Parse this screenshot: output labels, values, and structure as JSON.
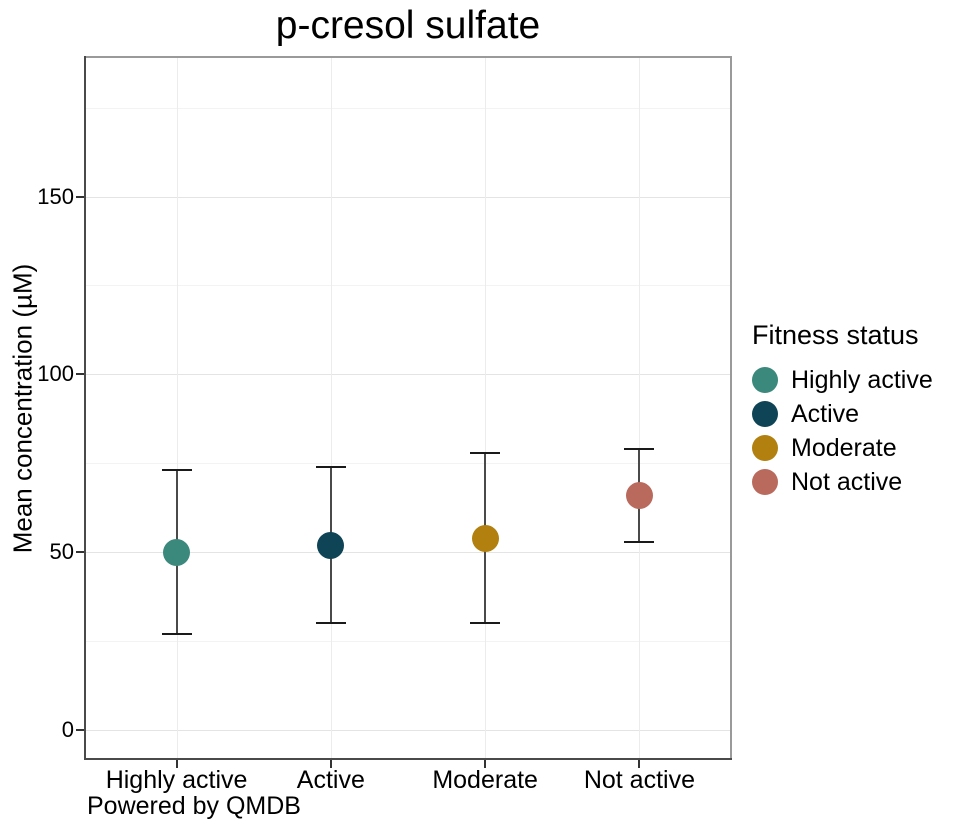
{
  "chart_data": {
    "type": "scatter",
    "title": "p-cresol sulfate",
    "ylabel": "Mean concentration (µM)",
    "xlabel": "",
    "caption": "Powered by QMDB",
    "categories": [
      "Highly active",
      "Active",
      "Moderate",
      "Not active"
    ],
    "series": [
      {
        "name": "Highly active",
        "mean": 50,
        "lower": 27,
        "upper": 73,
        "color": "#3B897C"
      },
      {
        "name": "Active",
        "mean": 52,
        "lower": 30,
        "upper": 74,
        "color": "#0E4456"
      },
      {
        "name": "Moderate",
        "mean": 54,
        "lower": 30,
        "upper": 78,
        "color": "#B1800E"
      },
      {
        "name": "Not active",
        "mean": 66,
        "lower": 53,
        "upper": 79,
        "color": "#B96A5C"
      }
    ],
    "ylim": [
      -8.4,
      189.5
    ],
    "yticks": [
      0,
      50,
      100,
      150
    ],
    "yminor": [
      25,
      75,
      125,
      175
    ],
    "grid": true,
    "legend": {
      "title": "Fitness status",
      "position": "right",
      "entries": [
        "Highly active",
        "Active",
        "Moderate",
        "Not active"
      ]
    },
    "errorbar_color": "#4a4a4a"
  }
}
